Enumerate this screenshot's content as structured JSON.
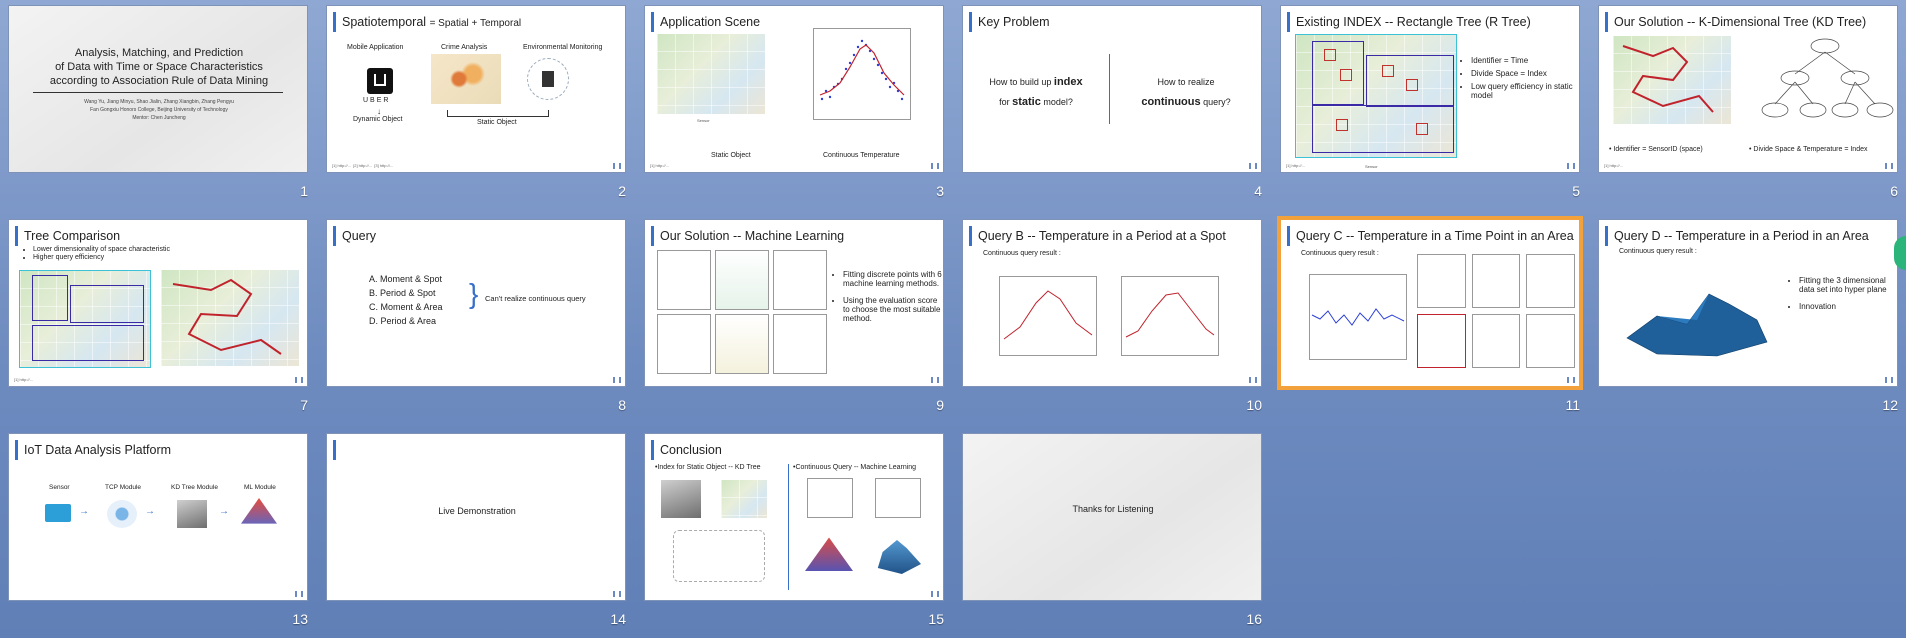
{
  "slides": [
    {
      "num": "1",
      "title": "Analysis, Matching, and Prediction of Data with Time or Space Characteristics according to Association Rule of Data Mining",
      "line1": "Analysis, Matching, and Prediction",
      "line2": "of Data with Time or Space Characteristics",
      "line3": "according to Association Rule of Data Mining",
      "authors": "Wang Yu, Jiang Minyu, Shao Jialin, Zhang Xiangbin, Zhang Pengyu",
      "college": "Fan Gongxiu Honors College, Beijing University of Technology",
      "mentor": "Mentor: Chen Juncheng"
    },
    {
      "num": "2",
      "title_main": "Spatiotemporal",
      "title_sub": "= Spatial + Temporal",
      "labels": [
        "Mobile Application",
        "Crime Analysis",
        "Environmental  Monitoring"
      ],
      "uber": "UBER",
      "dynamic": "Dynamic Object",
      "static": "Static Object"
    },
    {
      "num": "3",
      "title": "Application Scene",
      "left_caption": "Static Object",
      "right_caption": "Continuous  Temperature",
      "legend": "Sensor"
    },
    {
      "num": "4",
      "title": "Key Problem",
      "q1a": "How to build up",
      "q1b": "index",
      "q1c": "for",
      "q1d": "static",
      "q1e": "model?",
      "q2a": "How to realize",
      "q2b": "continuous",
      "q2c": "query?"
    },
    {
      "num": "5",
      "title": "Existing INDEX -- Rectangle Tree (R Tree)",
      "bullets": [
        "Identifier = Time",
        "Divide Space = Index",
        "Low query efficiency in static model"
      ],
      "legend": "Sensor"
    },
    {
      "num": "6",
      "title": "Our Solution -- K-Dimensional Tree (KD Tree)",
      "bullet_left": "Identifier = SensorID (space)",
      "bullet_right": "Divide Space & Temperature = Index"
    },
    {
      "num": "7",
      "title": "Tree Comparison",
      "bullets": [
        "Lower dimensionality of space characteristic",
        "Higher query efficiency"
      ]
    },
    {
      "num": "8",
      "title": "Query",
      "items": [
        "A.  Moment & Spot",
        "B.  Period & Spot",
        "C.  Moment & Area",
        "D.  Period & Area"
      ],
      "note": "Can't realize continuous query"
    },
    {
      "num": "9",
      "title": "Our Solution -- Machine Learning",
      "bullets": [
        "Fitting discrete points with 6 machine learning methods.",
        "Using the evaluation score to choose the most suitable method."
      ]
    },
    {
      "num": "10",
      "title": "Query B -- Temperature in a Period at a Spot",
      "sub": "Continuous  query  result :"
    },
    {
      "num": "11",
      "title": "Query C -- Temperature in a Time Point in an Area",
      "sub": "Continuous  query  result :"
    },
    {
      "num": "12",
      "title": "Query D -- Temperature in a Period in an Area",
      "sub": "Continuous  query  result :",
      "bullets": [
        "Fitting the 3 dimensional data set into hyper plane",
        "Innovation"
      ]
    },
    {
      "num": "13",
      "title": "IoT Data Analysis Platform",
      "modules": [
        "Sensor",
        "TCP Module",
        "KD Tree Module",
        "ML Module"
      ]
    },
    {
      "num": "14",
      "text": "Live Demonstration"
    },
    {
      "num": "15",
      "title": "Conclusion",
      "left": "•Index for Static Object -- KD Tree",
      "right": "•Continuous Query -- Machine Learning"
    },
    {
      "num": "16",
      "text": "Thanks for Listening"
    }
  ],
  "colors": {
    "accent": "#3670c8",
    "selected": "#f3a13b",
    "background": "#6f8cc0"
  }
}
